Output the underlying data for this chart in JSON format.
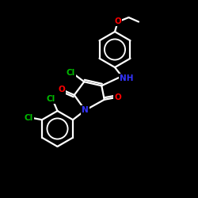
{
  "background_color": "#000000",
  "bond_color": "#ffffff",
  "atom_colors": {
    "O": "#ff0000",
    "N": "#3333ff",
    "Cl": "#00bb00",
    "C": "#ffffff",
    "H": "#ffffff"
  },
  "figsize": [
    2.5,
    2.5
  ],
  "dpi": 100
}
